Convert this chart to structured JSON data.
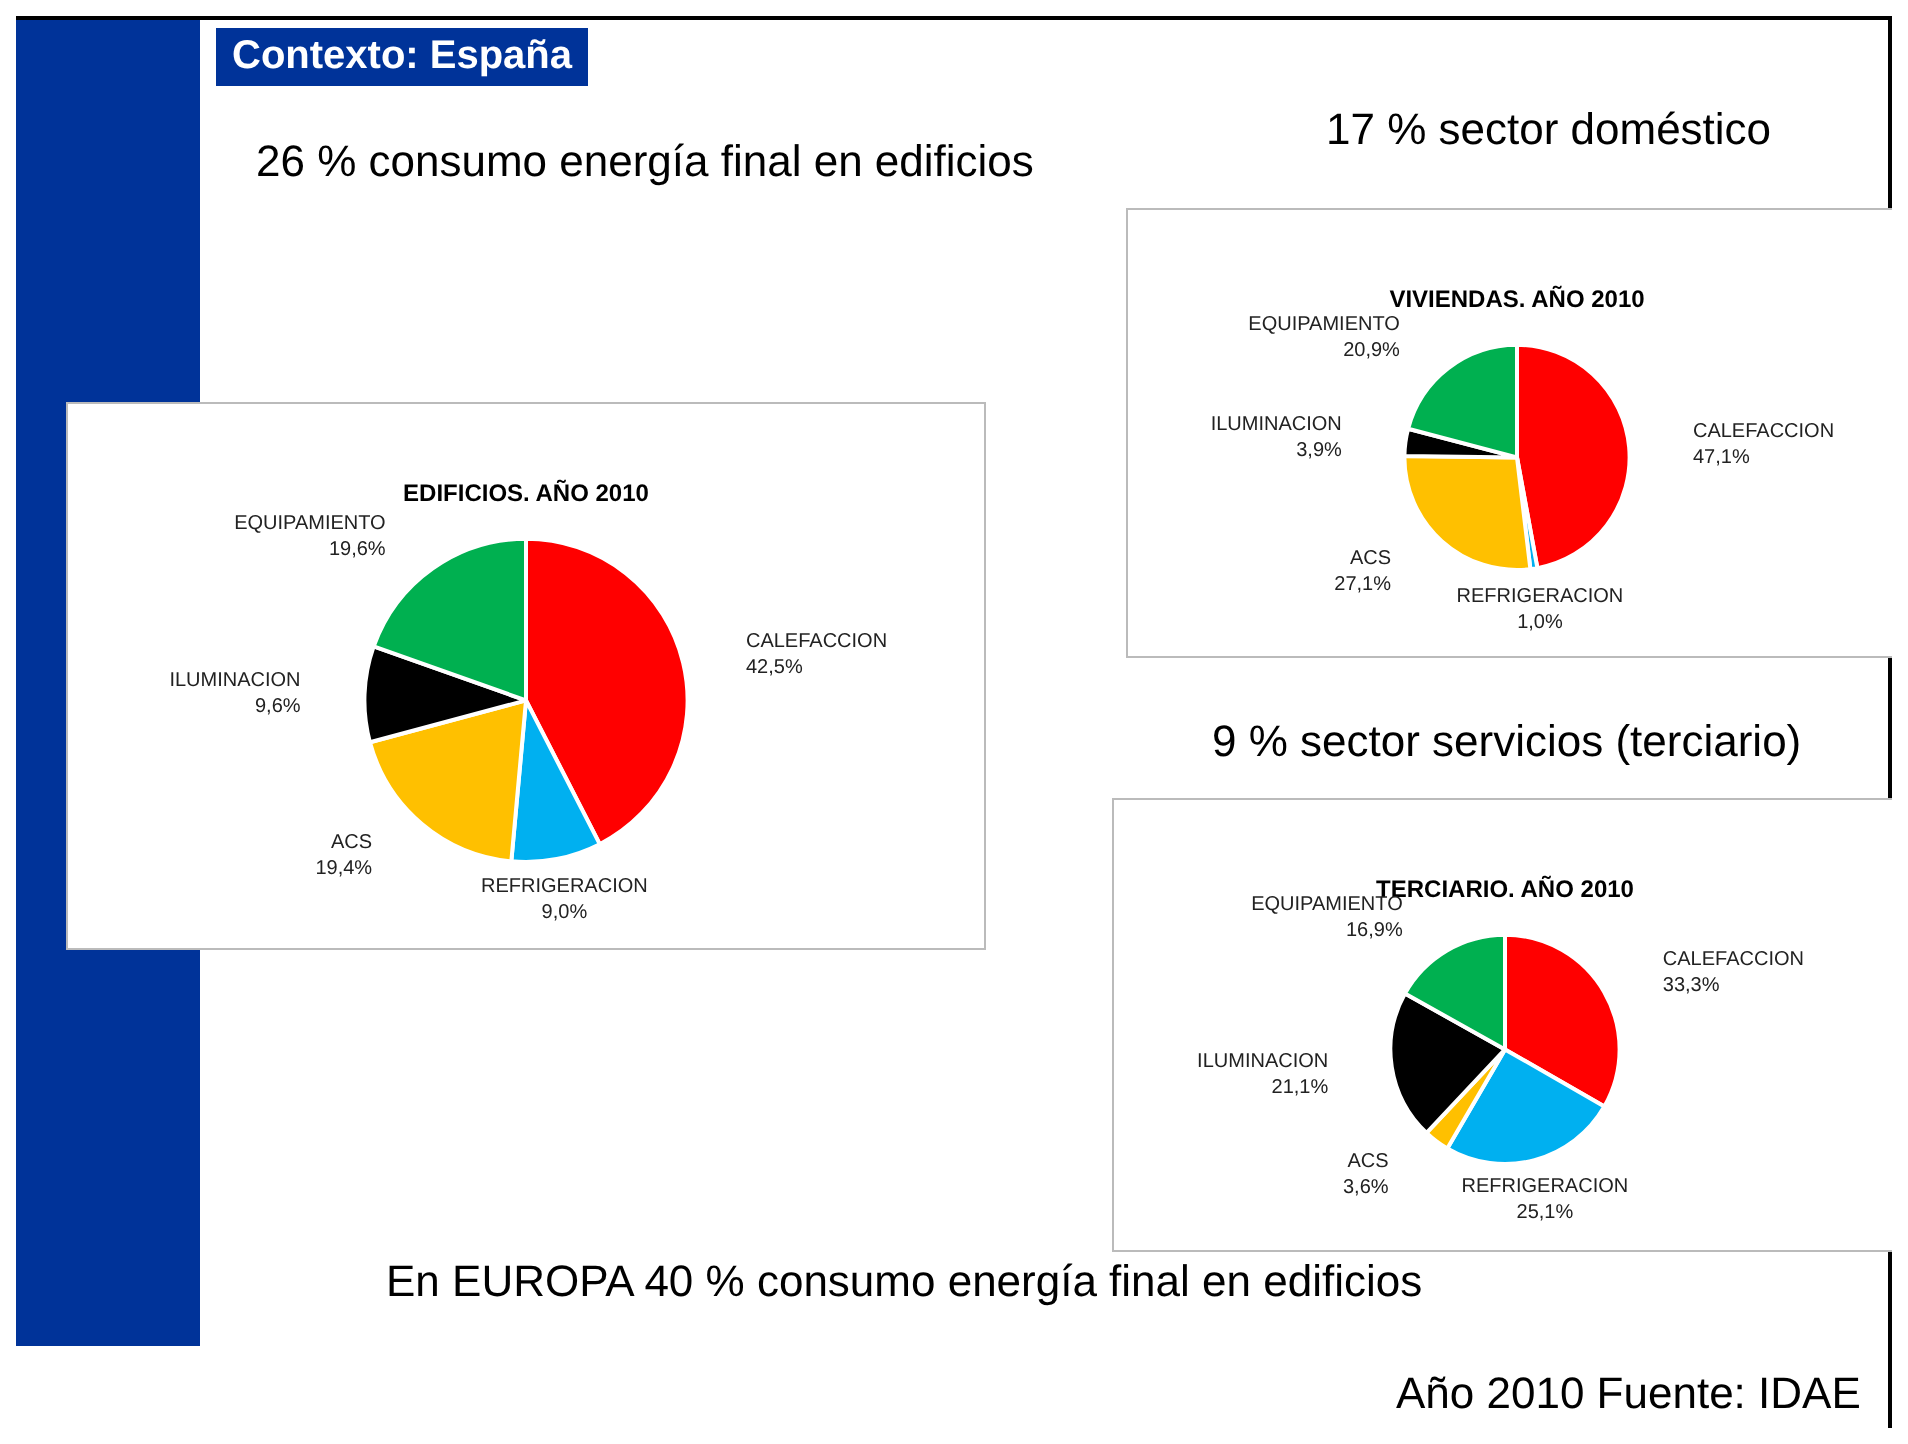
{
  "chart_data": [
    {
      "type": "pie",
      "title": "EDIFICIOS. AÑO 2010",
      "categories": [
        "CALEFACCION",
        "REFRIGERACION",
        "ACS",
        "ILUMINACION",
        "EQUIPAMIENTO"
      ],
      "values": [
        42.5,
        9.0,
        19.4,
        9.6,
        19.6
      ],
      "value_labels": [
        "42,5%",
        "9,0%",
        "19,4%",
        "9,6%",
        "19,6%"
      ],
      "colors": [
        "#ff0000",
        "#00b0f0",
        "#ffc000",
        "#000000",
        "#00b050"
      ],
      "legend": false,
      "annotations": [
        "Contexto: España",
        "26 % consumo energía final en edificios",
        "En EUROPA 40 % consumo energía final en edificios",
        "Año 2010  Fuente: IDAE"
      ]
    },
    {
      "type": "pie",
      "title": "VIVIENDAS. AÑO 2010",
      "categories": [
        "CALEFACCION",
        "REFRIGERACION",
        "ACS",
        "ILUMINACION",
        "EQUIPAMIENTO"
      ],
      "values": [
        47.1,
        1.0,
        27.1,
        3.9,
        20.9
      ],
      "value_labels": [
        "47,1%",
        "1,0%",
        "27,1%",
        "3,9%",
        "20,9%"
      ],
      "colors": [
        "#ff0000",
        "#00b0f0",
        "#ffc000",
        "#000000",
        "#00b050"
      ],
      "legend": false,
      "annotations": [
        "17 % sector doméstico"
      ]
    },
    {
      "type": "pie",
      "title": "TERCIARIO. AÑO 2010",
      "categories": [
        "CALEFACCION",
        "REFRIGERACION",
        "ACS",
        "ILUMINACION",
        "EQUIPAMIENTO"
      ],
      "values": [
        33.3,
        25.1,
        3.6,
        21.1,
        16.9
      ],
      "value_labels": [
        "33,3%",
        "25,1%",
        "3,6%",
        "21,1%",
        "16,9%"
      ],
      "colors": [
        "#ff0000",
        "#00b0f0",
        "#ffc000",
        "#000000",
        "#00b050"
      ],
      "legend": false,
      "annotations": [
        "9 % sector servicios (terciario)"
      ]
    }
  ]
}
